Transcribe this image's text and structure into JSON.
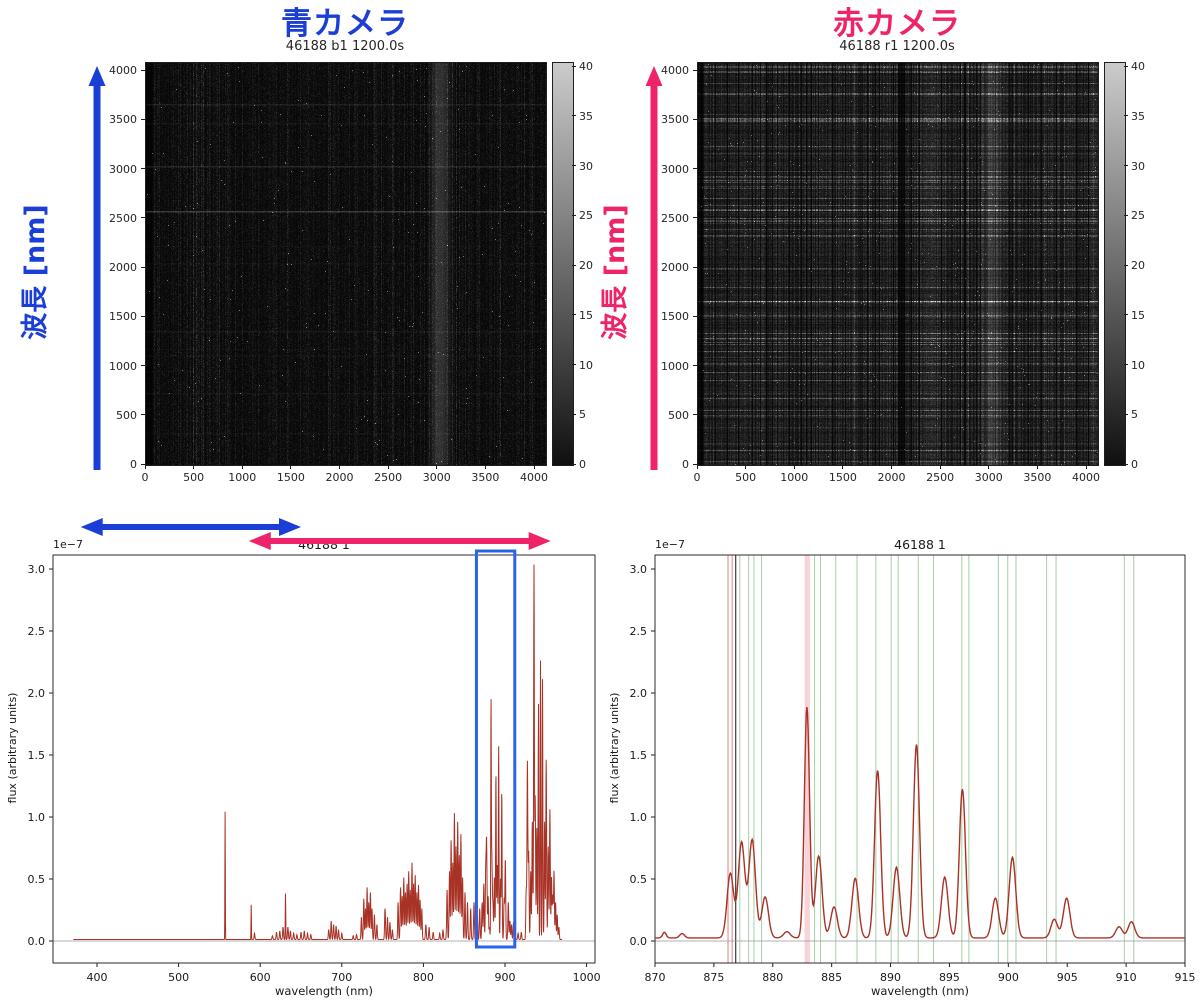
{
  "colors": {
    "blue": "#1b3fd6",
    "pink": "#ef2369",
    "spectrum_line": "#a93226",
    "green_ref_line": "#4f9e4f",
    "red_ref_line": "#d96060",
    "dark_ref_line": "#4a4a4a",
    "pink_band": "#f5a7b4",
    "blue_box": "#2a63e8",
    "frame": "#2b2b2b"
  },
  "blue_camera": {
    "title": "青カメラ",
    "subtitle": "46188 b1 1200.0s",
    "axis_label": "波長 [nm]",
    "x_ticks": [
      0,
      500,
      1000,
      1500,
      2000,
      2500,
      3000,
      3500,
      4000
    ],
    "y_ticks": [
      0,
      500,
      1000,
      1500,
      2000,
      2500,
      3000,
      3500,
      4000
    ],
    "colorbar_ticks": [
      0,
      5,
      10,
      15,
      20,
      25,
      30,
      35,
      40
    ]
  },
  "red_camera": {
    "title": "赤カメラ",
    "subtitle": "46188 r1 1200.0s",
    "axis_label": "波長 [nm]",
    "x_ticks": [
      0,
      500,
      1000,
      1500,
      2000,
      2500,
      3000,
      3500,
      4000
    ],
    "y_ticks": [
      0,
      500,
      1000,
      1500,
      2000,
      2500,
      3000,
      3500,
      4000
    ],
    "colorbar_ticks": [
      0,
      5,
      10,
      15,
      20,
      25,
      30,
      35,
      40
    ]
  },
  "chart_data": [
    {
      "id": "blue_camera_frame",
      "type": "heatmap",
      "title": "46188 b1 1200.0s",
      "x_range": [
        0,
        4100
      ],
      "y_range": [
        0,
        4100
      ],
      "colorbar_range": [
        0,
        40
      ],
      "description": "dark noisy CCD frame, vertical fiber streaks, faint horizontal sky lines, bright vertical band near x=3000"
    },
    {
      "id": "red_camera_frame",
      "type": "heatmap",
      "title": "46188 r1 1200.0s",
      "x_range": [
        0,
        4100
      ],
      "y_range": [
        0,
        4100
      ],
      "colorbar_range": [
        0,
        40
      ],
      "description": "bright noisy CCD frame, dense horizontal sky emission lines crossed by vertical fiber traces, bright vertical band near x=3000"
    },
    {
      "id": "full_spectrum",
      "type": "line",
      "title": "46188 1",
      "offset_label": "1e−7",
      "xlabel": "wavelength (nm)",
      "ylabel": "flux (arbitrary units)",
      "x_ticks": [
        400,
        500,
        600,
        700,
        800,
        900,
        1000
      ],
      "y_tick_labels": [
        "0.0",
        "0.5",
        "1.0",
        "1.5",
        "2.0",
        "2.5",
        "3.0"
      ],
      "y_ticks": [
        0.0,
        0.5,
        1.0,
        1.5,
        2.0,
        2.5,
        3.0
      ],
      "xlim": [
        347,
        1010
      ],
      "ylim": [
        -0.18,
        3.11
      ],
      "flux_unit_scale": "1e-7",
      "data_range_nm": [
        371,
        970
      ],
      "baseline": 0.012,
      "default_sigma_nm": 0.5,
      "peaks": [
        [
          557,
          1.03,
          0.25
        ],
        [
          589,
          0.28,
          0.25
        ],
        [
          593,
          0.05
        ],
        [
          615,
          0.03
        ],
        [
          620,
          0.06
        ],
        [
          624,
          0.07
        ],
        [
          628,
          0.1
        ],
        [
          631,
          0.37,
          0.3
        ],
        [
          634,
          0.1
        ],
        [
          637,
          0.07
        ],
        [
          641,
          0.05
        ],
        [
          645,
          0.04
        ],
        [
          650,
          0.06
        ],
        [
          654,
          0.07
        ],
        [
          658,
          0.05
        ],
        [
          662,
          0.04
        ],
        [
          684,
          0.08
        ],
        [
          687,
          0.15
        ],
        [
          690,
          0.12
        ],
        [
          693,
          0.11
        ],
        [
          696,
          0.08
        ],
        [
          700,
          0.05
        ],
        [
          714,
          0.03
        ],
        [
          718,
          0.04
        ],
        [
          724,
          0.18
        ],
        [
          727,
          0.33
        ],
        [
          729,
          0.25
        ],
        [
          731,
          0.42
        ],
        [
          733,
          0.3
        ],
        [
          735,
          0.38
        ],
        [
          737,
          0.25
        ],
        [
          740,
          0.2
        ],
        [
          743,
          0.12
        ],
        [
          753,
          0.25
        ],
        [
          756,
          0.18
        ],
        [
          759,
          0.14
        ],
        [
          762,
          0.08
        ],
        [
          769,
          0.3
        ],
        [
          772,
          0.42
        ],
        [
          774,
          0.35
        ],
        [
          776,
          0.5
        ],
        [
          778,
          0.38
        ],
        [
          780,
          0.45
        ],
        [
          782,
          0.55
        ],
        [
          784,
          0.4
        ],
        [
          786,
          0.62
        ],
        [
          788,
          0.45
        ],
        [
          790,
          0.52
        ],
        [
          792,
          0.38
        ],
        [
          794,
          0.44
        ],
        [
          796,
          0.32
        ],
        [
          798,
          0.25
        ],
        [
          803,
          0.12
        ],
        [
          807,
          0.1
        ],
        [
          812,
          0.06
        ],
        [
          820,
          0.05
        ],
        [
          824,
          0.08
        ],
        [
          829,
          0.4
        ],
        [
          832,
          0.55
        ],
        [
          834,
          0.8
        ],
        [
          836,
          0.62
        ],
        [
          838,
          1.02
        ],
        [
          840,
          0.75
        ],
        [
          842,
          0.95
        ],
        [
          844,
          0.68
        ],
        [
          846,
          0.85
        ],
        [
          848,
          0.5
        ],
        [
          851,
          0.38
        ],
        [
          854,
          0.3
        ],
        [
          858,
          0.25
        ],
        [
          862,
          0.3
        ],
        [
          866,
          0.2
        ],
        [
          869,
          0.25
        ],
        [
          872,
          0.3
        ],
        [
          874,
          0.45
        ],
        [
          876.4,
          0.55
        ],
        [
          877.5,
          0.78
        ],
        [
          879.3,
          0.35
        ],
        [
          881,
          0.1
        ],
        [
          882.9,
          1.88,
          0.35
        ],
        [
          883.9,
          0.67
        ],
        [
          885.2,
          0.28
        ],
        [
          887,
          0.5
        ],
        [
          888.9,
          1.35,
          0.4
        ],
        [
          890.5,
          0.6
        ],
        [
          892.2,
          1.57,
          0.4
        ],
        [
          894.6,
          0.5
        ],
        [
          896.1,
          1.2,
          0.4
        ],
        [
          898.9,
          0.33
        ],
        [
          900.4,
          0.65
        ],
        [
          904,
          0.3
        ],
        [
          906,
          0.15
        ],
        [
          908,
          0.12
        ],
        [
          910.4,
          0.14
        ],
        [
          916,
          0.05
        ],
        [
          920,
          0.06
        ],
        [
          926,
          0.4
        ],
        [
          927.5,
          1.43
        ],
        [
          929,
          0.7
        ],
        [
          931.5,
          0.55
        ],
        [
          933.5,
          0.95
        ],
        [
          935.5,
          3.01,
          0.45
        ],
        [
          937,
          1.15
        ],
        [
          939,
          0.9
        ],
        [
          941,
          1.9,
          0.4
        ],
        [
          943.5,
          2.25,
          0.4
        ],
        [
          946,
          2.1,
          0.4
        ],
        [
          948.5,
          0.95
        ],
        [
          950.5,
          1.45
        ],
        [
          953,
          0.75
        ],
        [
          955,
          1.05
        ],
        [
          957,
          0.5
        ],
        [
          958.5,
          0.35
        ],
        [
          960,
          0.55
        ],
        [
          962,
          0.3
        ],
        [
          964,
          0.2
        ],
        [
          966,
          0.1
        ]
      ],
      "blue_box_nm": [
        865,
        912
      ],
      "blue_arrow_nm": [
        380,
        650
      ],
      "red_arrow_nm": [
        586,
        956
      ]
    },
    {
      "id": "zoom_spectrum",
      "type": "line",
      "title": "46188 1",
      "offset_label": "1e−7",
      "xlabel": "wavelength (nm)",
      "ylabel": "flux (arbitrary units)",
      "x_ticks": [
        870,
        875,
        880,
        885,
        890,
        895,
        900,
        905,
        910,
        915
      ],
      "y_tick_labels": [
        "0.0",
        "0.5",
        "1.0",
        "1.5",
        "2.0",
        "2.5",
        "3.0"
      ],
      "y_ticks": [
        0.0,
        0.5,
        1.0,
        1.5,
        2.0,
        2.5,
        3.0
      ],
      "xlim": [
        870,
        915
      ],
      "ylim": [
        -0.18,
        3.11
      ],
      "flux_unit_scale": "1e-7",
      "baseline": 0.025,
      "default_sigma_nm": 0.28,
      "peaks": [
        [
          870.8,
          0.045,
          0.15
        ],
        [
          872.3,
          0.035,
          0.2
        ],
        [
          876.4,
          0.52
        ],
        [
          877.35,
          0.77
        ],
        [
          878.25,
          0.79
        ],
        [
          879.35,
          0.33
        ],
        [
          881.2,
          0.05
        ],
        [
          882.9,
          1.86,
          0.22
        ],
        [
          883.9,
          0.66
        ],
        [
          885.2,
          0.25
        ],
        [
          887.0,
          0.48
        ],
        [
          888.9,
          1.35,
          0.26
        ],
        [
          890.5,
          0.57
        ],
        [
          892.2,
          1.56,
          0.26
        ],
        [
          894.6,
          0.49
        ],
        [
          896.1,
          1.2,
          0.26
        ],
        [
          898.9,
          0.32
        ],
        [
          900.35,
          0.65
        ],
        [
          903.9,
          0.15
        ],
        [
          904.95,
          0.32
        ],
        [
          909.4,
          0.09
        ],
        [
          910.45,
          0.13
        ]
      ],
      "green_lines_nm": [
        877.2,
        877.95,
        878.4,
        879.05,
        883.55,
        884.05,
        885.35,
        887.15,
        888.75,
        890.05,
        890.65,
        892.35,
        893.65,
        896.05,
        896.65,
        899.15,
        899.95,
        900.65,
        903.25,
        904.05,
        909.85,
        910.65
      ],
      "red_lines_nm": [
        876.2,
        876.55
      ],
      "dark_line_nm": 876.85,
      "pink_band_nm": [
        882.7,
        883.15
      ]
    }
  ]
}
